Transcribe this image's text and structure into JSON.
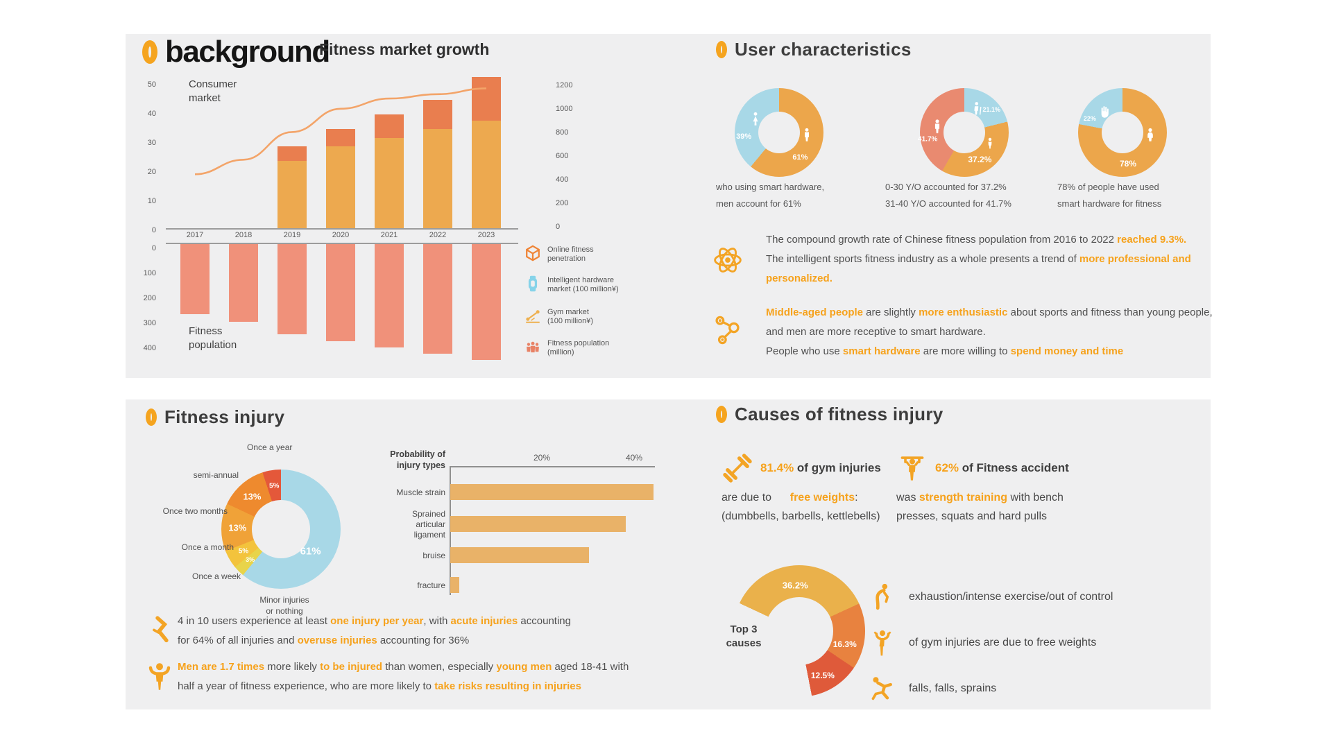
{
  "page": {
    "background": "#ffffff",
    "panel_background": "#efeff0",
    "accent": "#f5a41f"
  },
  "background_panel": {
    "badge": "0",
    "title": "background",
    "subtitle": "Fitness market growth",
    "consumer_label": "Consumer\nmarket",
    "population_label": "Fitness\npopulation",
    "legend": [
      {
        "icon": "cube-icon",
        "label": "Online fitness\npenetration",
        "color": "#ef8436"
      },
      {
        "icon": "smartwatch-icon",
        "label": "Intelligent hardware\nmarket (100 million¥)",
        "color": "#86d3e9"
      },
      {
        "icon": "gym-market-icon",
        "label": "Gym market\n(100 million¥)",
        "color": "#eeb04f"
      },
      {
        "icon": "people-icon",
        "label": "Fitness population\n(million)",
        "color": "#e88266"
      }
    ],
    "chart_data": {
      "type": "combo",
      "x": [
        2017,
        2018,
        2019,
        2020,
        2021,
        2022,
        2023
      ],
      "left_axis_upper": [
        50,
        40,
        30,
        20,
        10,
        0
      ],
      "left_axis_lower": [
        0,
        100,
        200,
        300,
        400
      ],
      "right_axis": [
        1200,
        1000,
        800,
        600,
        400,
        200,
        0
      ],
      "series": [
        {
          "id": "gym",
          "name": "Gym market (100 million¥)",
          "type": "bar",
          "stack": "upper",
          "color": "#eda94f",
          "values": [
            0,
            0,
            23,
            28,
            31,
            34,
            37
          ]
        },
        {
          "id": "hardware",
          "name": "Intelligent hardware market (100 million¥)",
          "type": "bar",
          "stack": "upper",
          "color": "#e97e4f",
          "values": [
            0,
            0,
            5,
            6,
            8,
            10,
            15
          ]
        },
        {
          "id": "line",
          "name": "Online fitness penetration",
          "type": "line",
          "color": "#f3a469",
          "values": [
            18.5,
            23.5,
            33,
            41,
            44.5,
            46,
            48
          ]
        },
        {
          "id": "population",
          "name": "Fitness population (million)",
          "type": "bar",
          "stack": "lower",
          "color": "#f0917a",
          "values": [
            280,
            310,
            360,
            390,
            415,
            440,
            465
          ]
        }
      ]
    }
  },
  "user_panel": {
    "badge": "0",
    "title": "User characteristics",
    "donuts": [
      {
        "caption": "who using smart hardware,\nmen account for 61%",
        "chart_data": {
          "type": "donut",
          "hole": 0.47,
          "segments": [
            {
              "value": 61,
              "pct": "61%",
              "color": "#eca64b",
              "icon": "male-icon",
              "ia": 95,
              "la": 140,
              "lr": 0.74
            },
            {
              "value": 39,
              "pct": "39%",
              "color": "#a8d8e7",
              "icon": "female-icon",
              "ia": 300,
              "la": 263,
              "lr": 0.8
            }
          ]
        }
      },
      {
        "caption": "0-30 Y/O accounted for 37.2%\n31-40 Y/O  accounted for 41.7%",
        "chart_data": {
          "type": "donut",
          "hole": 0.47,
          "segments": [
            {
              "value": 21.1,
              "pct": "21.1%",
              "color": "#a8d8e7",
              "icon": "elderly-icon",
              "ia": 28,
              "la": 50,
              "lr": 0.8,
              "fs": 9
            },
            {
              "value": 37.2,
              "pct": "37.2%",
              "color": "#eca64b",
              "icon": "youth-icon",
              "ia": 112,
              "la": 150,
              "lr": 0.7,
              "fs": 12
            },
            {
              "value": 41.7,
              "pct": "41.7%",
              "color": "#e98a70",
              "icon": "adult-icon",
              "ia": 283,
              "la": 259,
              "lr": 0.84,
              "fs": 10
            }
          ]
        }
      },
      {
        "caption": "78% of people have used\nsmart hardware for fitness",
        "chart_data": {
          "type": "donut",
          "hole": 0.47,
          "segments": [
            {
              "value": 78,
              "pct": "78%",
              "color": "#eca64b",
              "icon": "person-icon",
              "ia": 95,
              "la": 170,
              "lr": 0.72,
              "fs": 12
            },
            {
              "value": 22,
              "pct": "22%",
              "color": "#a8d8e7",
              "icon": "hand-icon",
              "ia": 320,
              "la": 293,
              "lr": 0.8,
              "fs": 9
            }
          ]
        }
      }
    ],
    "insights": [
      {
        "icon": "atom-icon",
        "parts": [
          {
            "t": "The compound growth rate of Chinese fitness population from 2016 to 2022 "
          },
          {
            "t": "reached 9.3%.",
            "hl": true
          },
          {
            "t": "            The intelligent sports fitness industry as a whole presents a trend of "
          },
          {
            "t": "more professional and personalized.",
            "hl": true
          }
        ]
      },
      {
        "icon": "molecule-icon",
        "parts": [
          {
            "t": "Middle-aged people",
            "hl": true
          },
          {
            "t": " are slightly "
          },
          {
            "t": "more enthusiastic",
            "hl": true
          },
          {
            "t": " about sports and fitness than young people, and men are more receptive to smart hardware.\nPeople who use "
          },
          {
            "t": "smart hardware",
            "hl": true
          },
          {
            "t": " are more willing to "
          },
          {
            "t": "spend money and time",
            "hl": true
          }
        ]
      }
    ]
  },
  "injury_panel": {
    "badge": "0",
    "title": "Fitness injury",
    "donut_chart": {
      "type": "donut",
      "hole": 0.49,
      "segments": [
        {
          "label": "Minor injuries\nor nothing",
          "pct": "61%",
          "value": 61,
          "color": "#a8d8e7",
          "la": 127,
          "lr": 0.62,
          "fs": 15
        },
        {
          "label": "Once a week",
          "pct": "3%",
          "value": 3,
          "color": "#e8d44a",
          "fs": 9
        },
        {
          "label": "Once a month",
          "pct": "5%",
          "value": 5,
          "color": "#f3c33c",
          "fs": 10
        },
        {
          "label": "Once two months",
          "pct": "13%",
          "value": 13,
          "color": "#f0a238",
          "fs": 13
        },
        {
          "label": "semi-annual",
          "pct": "13%",
          "value": 13,
          "color": "#ee8a2e",
          "fs": 13
        },
        {
          "label": "Once a year",
          "pct": "5%",
          "value": 5,
          "color": "#e4583a",
          "fs": 10
        }
      ]
    },
    "bar_chart": {
      "type": "hbar",
      "header": "Probability of\ninjury types",
      "ticks": [
        {
          "label": "20%",
          "value": 20
        },
        {
          "label": "40%",
          "value": 40
        }
      ],
      "color": "#e9b268",
      "rows": [
        {
          "label": "Muscle strain",
          "value": 44
        },
        {
          "label": "Sprained articular\nligament",
          "value": 38
        },
        {
          "label": "bruise",
          "value": 30
        },
        {
          "label": "fracture",
          "value": 2
        }
      ]
    },
    "insights": [
      {
        "icon": "joint-injury-icon",
        "parts": [
          {
            "t": "4 in 10 users experience at least "
          },
          {
            "t": "one injury per year",
            "hl": true
          },
          {
            "t": ", with "
          },
          {
            "t": "acute injuries",
            "hl": true
          },
          {
            "t": " accounting\nfor 64% of all injuries and "
          },
          {
            "t": "overuse injuries",
            "hl": true
          },
          {
            "t": " accounting for 36%"
          }
        ]
      },
      {
        "icon": "flexing-man-icon",
        "parts": [
          {
            "t": "Men are 1.7 times",
            "hl": true
          },
          {
            "t": " more likely "
          },
          {
            "t": "to be injured",
            "hl": true
          },
          {
            "t": " than women, especially "
          },
          {
            "t": "young men",
            "hl": true
          },
          {
            "t": " aged 18-41 with\nhalf a year of fitness experience, who are more likely to "
          },
          {
            "t": "take risks resulting in injuries",
            "hl": true
          }
        ]
      }
    ]
  },
  "causes_panel": {
    "badge": "0",
    "title": "Causes of fitness injury",
    "stats": [
      {
        "icon": "dumbbell-icon",
        "line1": [
          {
            "t": "81.4%",
            "hl": true
          },
          {
            "t": " of gym injuries"
          }
        ],
        "rest": [
          {
            "t": "are due to      "
          },
          {
            "t": "free weights",
            "hl": true
          },
          {
            "t": ":\n(dumbbells, barbells, kettlebells)"
          }
        ]
      },
      {
        "icon": "weightlifter-icon",
        "line1": [
          {
            "t": "62%",
            "hl": true
          },
          {
            "t": " of Fitness accident"
          }
        ],
        "rest": [
          {
            "t": "was "
          },
          {
            "t": "strength training",
            "hl": true
          },
          {
            "t": " with bench\npresses, squats and hard pulls"
          }
        ]
      }
    ],
    "top3_label": "Top 3\ncauses",
    "top3_chart": {
      "type": "donut",
      "hole": 0.52,
      "from": 295,
      "segments": [
        {
          "pct": "36.2%",
          "value": 36.2,
          "color": "#eab14b",
          "la": 355,
          "lr": 0.7,
          "fs": 13
        },
        {
          "pct": "16.3%",
          "value": 16.3,
          "color": "#e8823f",
          "la": 106,
          "lr": 0.72,
          "fs": 12
        },
        {
          "pct": "12.5%",
          "value": 12.5,
          "color": "#df5a3a",
          "la": 152,
          "lr": 0.76,
          "fs": 12
        }
      ]
    },
    "list": [
      {
        "icon": "exhausted-person-icon",
        "text": "exhaustion/intense exercise/out of control"
      },
      {
        "icon": "arms-raised-icon",
        "text": "of gym injuries are due to free weights"
      },
      {
        "icon": "falling-person-icon",
        "text": "falls, falls, sprains"
      }
    ]
  }
}
